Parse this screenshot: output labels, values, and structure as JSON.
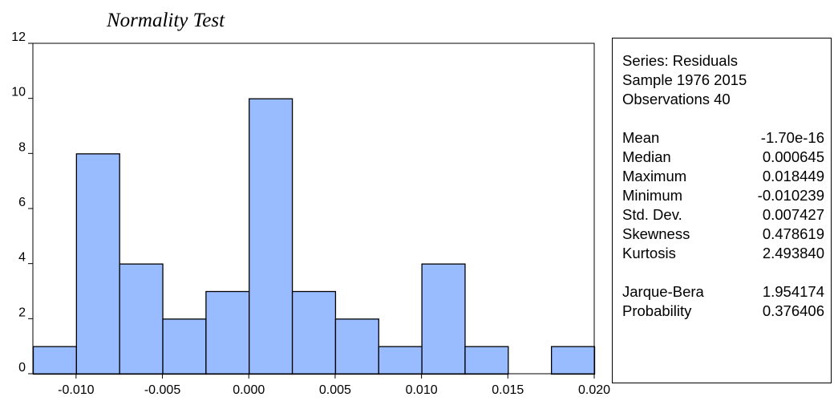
{
  "chart_data": {
    "type": "bar",
    "title": "Normality Test",
    "bin_edges": [
      -0.0125,
      -0.01,
      -0.0075,
      -0.005,
      -0.0025,
      0.0,
      0.0025,
      0.005,
      0.0075,
      0.01,
      0.0125,
      0.015,
      0.0175,
      0.02
    ],
    "values": [
      1,
      8,
      4,
      2,
      3,
      10,
      3,
      2,
      1,
      4,
      1,
      0,
      1
    ],
    "xlim": [
      -0.0125,
      0.02
    ],
    "ylim": [
      0,
      12
    ],
    "x_ticks": [
      {
        "value": -0.01,
        "label": "-0.010"
      },
      {
        "value": -0.005,
        "label": "-0.005"
      },
      {
        "value": 0.0,
        "label": "0.000"
      },
      {
        "value": 0.005,
        "label": "0.005"
      },
      {
        "value": 0.01,
        "label": "0.010"
      },
      {
        "value": 0.015,
        "label": "0.015"
      },
      {
        "value": 0.02,
        "label": "0.020"
      }
    ],
    "y_ticks": [
      {
        "value": 0,
        "label": "0"
      },
      {
        "value": 2,
        "label": "2"
      },
      {
        "value": 4,
        "label": "4"
      },
      {
        "value": 6,
        "label": "6"
      },
      {
        "value": 8,
        "label": "8"
      },
      {
        "value": 10,
        "label": "10"
      },
      {
        "value": 12,
        "label": "12"
      }
    ],
    "bar_color": "#99bbff",
    "bar_edge_color": "#000000"
  },
  "stats": {
    "series": "Series: Residuals",
    "sample": "Sample 1976 2015",
    "observations": "Observations 40",
    "rows": [
      {
        "label": "Mean",
        "value": "-1.70e-16"
      },
      {
        "label": "Median",
        "value": "0.000645"
      },
      {
        "label": "Maximum",
        "value": "0.018449"
      },
      {
        "label": "Minimum",
        "value": "-0.010239"
      },
      {
        "label": "Std. Dev.",
        "value": "0.007427"
      },
      {
        "label": "Skewness",
        "value": "0.478619"
      },
      {
        "label": "Kurtosis",
        "value": "2.493840"
      }
    ],
    "test_rows": [
      {
        "label": "Jarque-Bera",
        "value": "1.954174"
      },
      {
        "label": "Probability",
        "value": "0.376406"
      }
    ]
  }
}
